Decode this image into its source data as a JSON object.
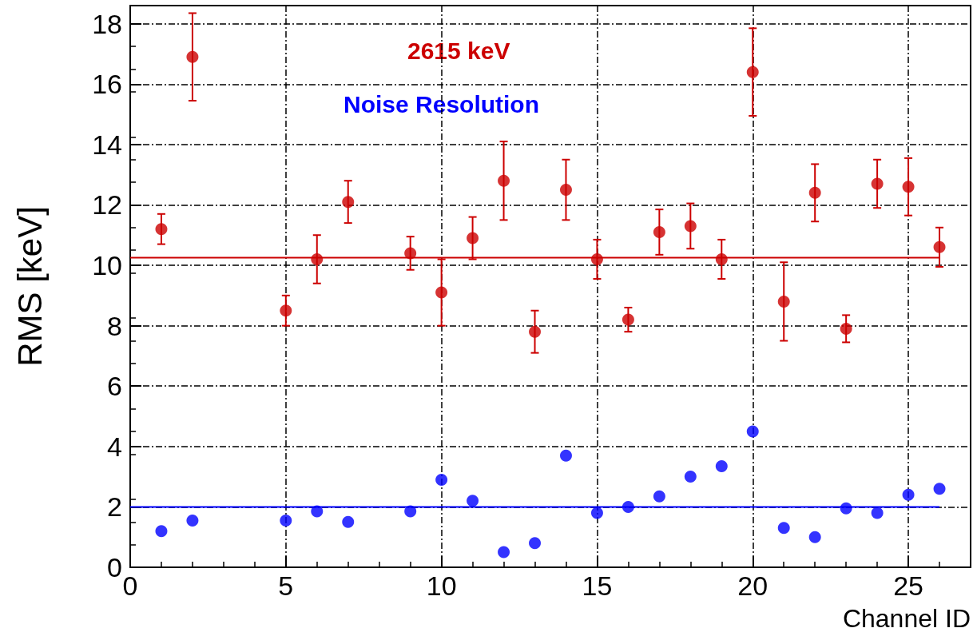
{
  "chart_data": {
    "type": "scatter",
    "xlabel": "Channel ID",
    "ylabel": "RMS [keV]",
    "xlim": [
      0,
      27
    ],
    "xticks": [
      0,
      5,
      10,
      15,
      20,
      25
    ],
    "ylim": [
      0,
      18.6
    ],
    "yticks": [
      0,
      2,
      4,
      6,
      8,
      10,
      12,
      14,
      16,
      18
    ],
    "grid": true,
    "legend": false,
    "series": [
      {
        "name": "2615 keV",
        "color": "#cc0000",
        "marker": "circle",
        "x": [
          1,
          2,
          5,
          6,
          7,
          9,
          10,
          11,
          12,
          13,
          14,
          15,
          16,
          17,
          18,
          19,
          20,
          21,
          22,
          23,
          24,
          25,
          26
        ],
        "values": [
          11.2,
          16.9,
          8.5,
          10.2,
          12.1,
          10.4,
          9.1,
          10.9,
          12.8,
          7.8,
          12.5,
          10.2,
          8.2,
          11.1,
          11.3,
          10.2,
          16.4,
          8.8,
          12.4,
          7.9,
          12.7,
          12.6,
          10.6
        ],
        "errors": [
          0.5,
          1.45,
          0.5,
          0.8,
          0.7,
          0.55,
          1.1,
          0.7,
          1.3,
          0.7,
          1.0,
          0.65,
          0.4,
          0.75,
          0.75,
          0.65,
          1.45,
          1.3,
          0.95,
          0.45,
          0.8,
          0.95,
          0.65
        ]
      },
      {
        "name": "Noise Resolution",
        "color": "#0000ff",
        "marker": "circle",
        "x": [
          1,
          2,
          5,
          6,
          7,
          9,
          10,
          11,
          12,
          13,
          14,
          15,
          16,
          17,
          18,
          19,
          20,
          21,
          22,
          23,
          24,
          25,
          26
        ],
        "values": [
          1.2,
          1.55,
          1.55,
          1.85,
          1.5,
          1.85,
          2.9,
          2.2,
          0.5,
          0.8,
          3.7,
          1.8,
          2.0,
          2.35,
          3.0,
          3.35,
          4.5,
          1.3,
          1.0,
          1.95,
          1.8,
          2.4,
          2.6
        ]
      },
      {
        "type": "line",
        "color": "#cc0000",
        "marker": "none",
        "x": [
          0,
          26
        ],
        "values": [
          10.25,
          10.25
        ]
      },
      {
        "type": "line",
        "color": "#0000ff",
        "marker": "none",
        "x": [
          0,
          26
        ],
        "values": [
          2.0,
          2.0
        ]
      }
    ]
  }
}
